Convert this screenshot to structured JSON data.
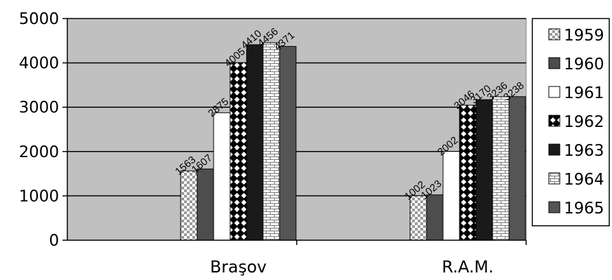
{
  "chart_data": {
    "type": "bar",
    "title": "",
    "xlabel": "",
    "ylabel": "",
    "ylim": [
      0,
      5000
    ],
    "yticks": [
      0,
      1000,
      2000,
      3000,
      4000,
      5000
    ],
    "grid": true,
    "legend_position": "right",
    "categories": [
      "Braşov",
      "R.A.M."
    ],
    "series": [
      {
        "name": "1959",
        "values": [
          1563,
          1002
        ],
        "data_labels": [
          "1563",
          "1002"
        ],
        "fill": "checker",
        "color": "#c0c0c0"
      },
      {
        "name": "1960",
        "values": [
          1607,
          1023
        ],
        "data_labels": [
          "1607",
          "1023"
        ],
        "fill": "solid",
        "color": "#4d4d4d"
      },
      {
        "name": "1961",
        "values": [
          2875,
          2002
        ],
        "data_labels": [
          "2875",
          "2002"
        ],
        "fill": "solid",
        "color": "#ffffff"
      },
      {
        "name": "1962",
        "values": [
          4005,
          3046
        ],
        "data_labels": [
          "4005",
          "3046"
        ],
        "fill": "diamond",
        "color": "#000000"
      },
      {
        "name": "1963",
        "values": [
          4410,
          3170
        ],
        "data_labels": [
          "4410",
          "3170"
        ],
        "fill": "solid",
        "color": "#1a1a1a"
      },
      {
        "name": "1964",
        "values": [
          4456,
          3236
        ],
        "data_labels": [
          "4456",
          "3236"
        ],
        "fill": "brick",
        "color": "#ffffff"
      },
      {
        "name": "1965",
        "values": [
          4371,
          3238
        ],
        "data_labels": [
          "4371",
          "3238"
        ],
        "fill": "solid",
        "color": "#555555"
      }
    ],
    "colors": {
      "plot_background": "#c0c0c0",
      "gridline": "#000000",
      "axis": "#000000"
    }
  }
}
